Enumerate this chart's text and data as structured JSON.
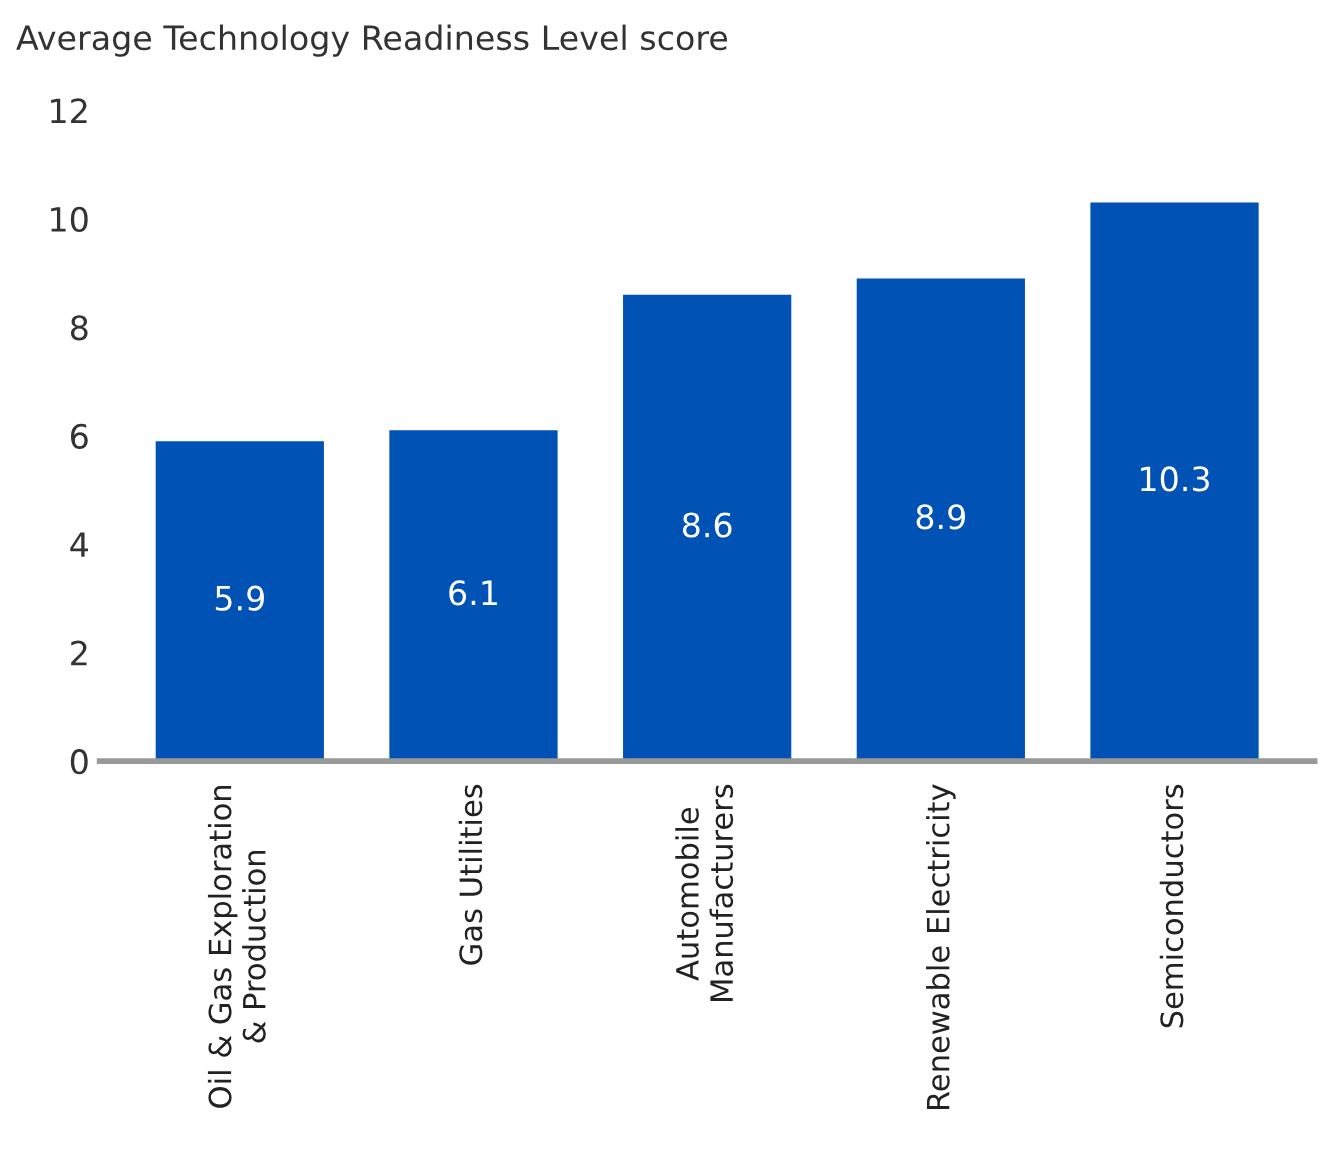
{
  "chart_data": {
    "type": "bar",
    "title": "Average Technology Readiness Level score",
    "categories": [
      "Oil & Gas Exploration\n& Production",
      "Gas Utilities",
      "Automobile\nManufacturers",
      "Renewable Electricity",
      "Semiconductors"
    ],
    "values": [
      5.9,
      6.1,
      8.6,
      8.9,
      10.3
    ],
    "color": "#0052b4",
    "ylim": [
      0,
      12
    ],
    "yticks": [
      0,
      2,
      4,
      6,
      8,
      10,
      12
    ],
    "grid": false,
    "data_labels": true
  }
}
